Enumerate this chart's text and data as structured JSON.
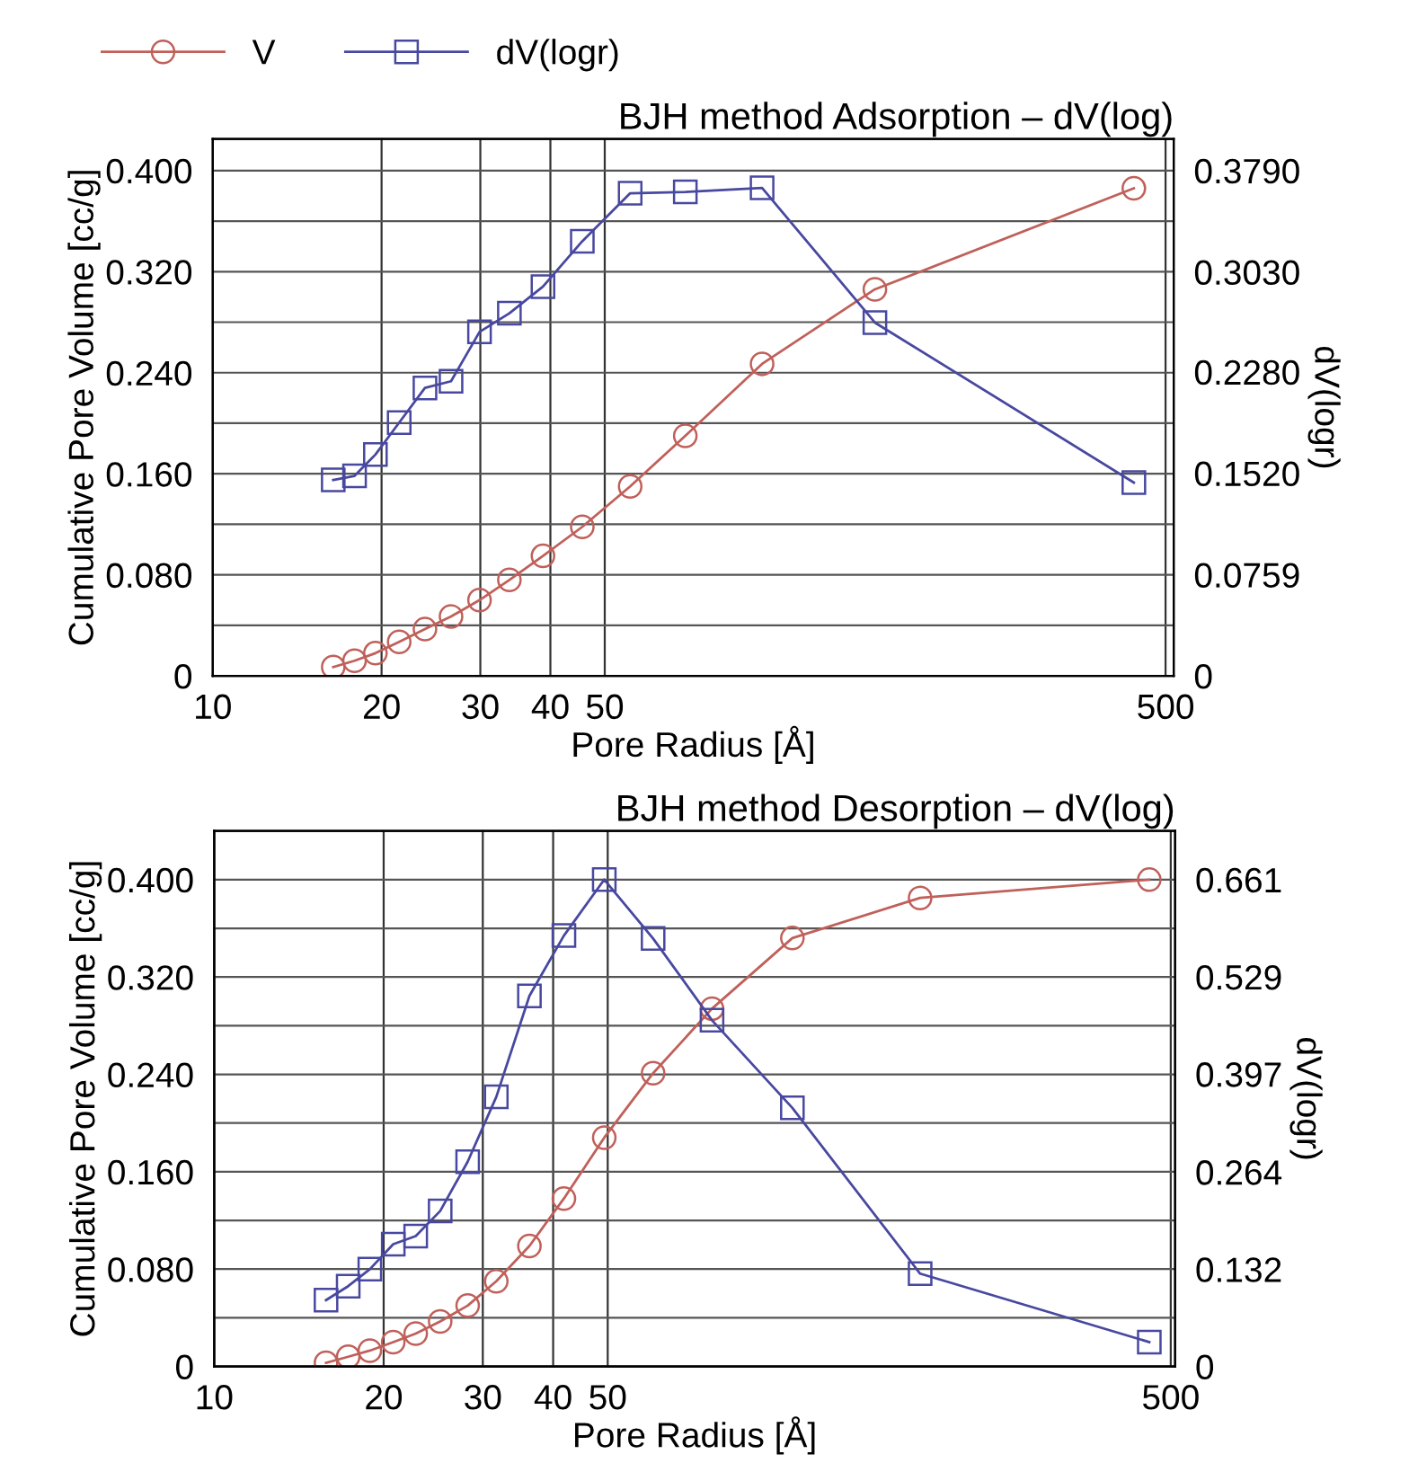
{
  "chart_data": [
    {
      "type": "line",
      "title": "BJH method Adsorption – dV(log)",
      "xlabel": "Pore Radius [Å]",
      "ylabel": "Cumulative Pore Volume [cc/g]",
      "y2label": "dV(logr)",
      "log": "x",
      "grid": true,
      "legend": "top left",
      "line_style": "solid",
      "xlim": [
        10,
        517
      ],
      "xticks": [
        10,
        20,
        30,
        40,
        50,
        500
      ],
      "ylim": [
        0,
        0.425
      ],
      "yticks": [
        0,
        {
          "value": 0.04,
          "label": null
        },
        {
          "value": 0.08,
          "label": "0.080"
        },
        {
          "value": 0.12,
          "label": null
        },
        {
          "value": 0.16,
          "label": "0.160"
        },
        {
          "value": 0.2,
          "label": null
        },
        {
          "value": 0.24,
          "label": "0.240"
        },
        {
          "value": 0.28,
          "label": null
        },
        {
          "value": 0.32,
          "label": "0.320"
        },
        {
          "value": 0.36,
          "label": null
        },
        {
          "value": 0.4,
          "label": "0.400"
        }
      ],
      "y2lim": [
        0,
        0.4027
      ],
      "y2ticks": [
        0,
        {
          "value": 0.0759,
          "label": "0.0759"
        },
        {
          "value": 0.152,
          "label": "0.1520"
        },
        {
          "value": 0.228,
          "label": "0.2280"
        },
        {
          "value": 0.303,
          "label": "0.3030"
        },
        {
          "value": 0.379,
          "label": "0.3790"
        }
      ],
      "x": [
        16.4,
        17.9,
        19.5,
        21.5,
        23.9,
        26.6,
        29.9,
        33.8,
        38.8,
        45.6,
        55.5,
        69.6,
        95.4,
        151.6,
        439
      ],
      "series": [
        {
          "name": "V",
          "color": "#c0605a",
          "marker": "circle",
          "values": [
            0.007,
            0.012,
            0.018,
            0.027,
            0.037,
            0.047,
            0.06,
            0.076,
            0.095,
            0.118,
            0.15,
            0.19,
            0.247,
            0.306,
            0.386
          ]
        },
        {
          "name": "dV(logr)",
          "color": "#4848a0",
          "marker": "square",
          "axis": "y2",
          "values": [
            0.147,
            0.15,
            0.166,
            0.19,
            0.216,
            0.221,
            0.258,
            0.272,
            0.292,
            0.326,
            0.362,
            0.363,
            0.366,
            0.265,
            0.145
          ]
        }
      ]
    },
    {
      "type": "line",
      "title": "BJH method Desorption – dV(log)",
      "xlabel": "Pore Radius [Å]",
      "ylabel": "Cumulative Pore Volume [cc/g]",
      "y2label": "dV(logr)",
      "log": "x",
      "grid": true,
      "line_style": "solid",
      "xlim": [
        10,
        509
      ],
      "xticks": [
        10,
        20,
        30,
        40,
        50,
        500
      ],
      "ylim": [
        0,
        0.44
      ],
      "yticks": [
        0,
        {
          "value": 0.04,
          "label": null
        },
        {
          "value": 0.08,
          "label": "0.080"
        },
        {
          "value": 0.12,
          "label": null
        },
        {
          "value": 0.16,
          "label": "0.160"
        },
        {
          "value": 0.2,
          "label": null
        },
        {
          "value": 0.24,
          "label": "0.240"
        },
        {
          "value": 0.28,
          "label": null
        },
        {
          "value": 0.32,
          "label": "0.320"
        },
        {
          "value": 0.36,
          "label": null
        },
        {
          "value": 0.4,
          "label": "0.400"
        }
      ],
      "y2lim": [
        0,
        0.727
      ],
      "y2ticks": [
        0,
        {
          "value": 0.132,
          "label": "0.132"
        },
        {
          "value": 0.264,
          "label": "0.264"
        },
        {
          "value": 0.397,
          "label": "0.397"
        },
        {
          "value": 0.529,
          "label": "0.529"
        },
        {
          "value": 0.661,
          "label": "0.661"
        }
      ],
      "x": [
        15.8,
        17.3,
        18.9,
        20.8,
        22.8,
        25.2,
        28.2,
        31.7,
        36.3,
        41.8,
        49.3,
        60.2,
        76.6,
        106.4,
        179.4,
        458
      ],
      "series": [
        {
          "color": "#c0605a",
          "marker": "circle",
          "values": [
            0.003,
            0.008,
            0.013,
            0.02,
            0.027,
            0.037,
            0.05,
            0.07,
            0.099,
            0.138,
            0.188,
            0.241,
            0.294,
            0.352,
            0.385,
            0.4
          ]
        },
        {
          "color": "#4848a0",
          "marker": "square",
          "axis": "y2",
          "values": [
            0.09,
            0.109,
            0.132,
            0.166,
            0.177,
            0.211,
            0.278,
            0.366,
            0.503,
            0.585,
            0.661,
            0.581,
            0.47,
            0.351,
            0.126,
            0.033
          ]
        }
      ]
    }
  ]
}
